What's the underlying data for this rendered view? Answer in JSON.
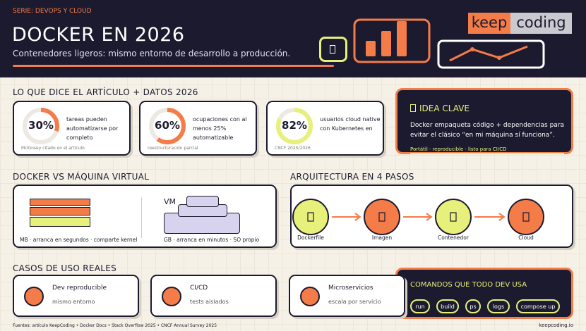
{
  "header": {
    "series": "SERIE: DEVOPS Y CLOUD",
    "title": "DOCKER EN 2026",
    "subtitle": "Contenedores ligeros: mismo entorno de desarrollo a producción.",
    "logo": [
      "keep",
      "coding"
    ]
  },
  "sections": {
    "stats": "LO QUE DICE EL ARTÍCULO + DATOS 2026",
    "compare": "DOCKER VS MÁQUINA VIRTUAL",
    "arch": "ARQUITECTURA EN 4 PASOS",
    "uses": "CASOS DE USO REALES"
  },
  "stats": [
    {
      "value": 30,
      "label": "30%",
      "text": "tareas pueden automatizarse por completo",
      "source": "McKinsey citado en el artículo"
    },
    {
      "value": 60,
      "label": "60%",
      "text": "ocupaciones con al menos 25% automatizable",
      "source": "reestructuración parcial"
    },
    {
      "value": 82,
      "label": "82%",
      "text": "usuarios cloud native con Kubernetes en",
      "source": "CNCF 2025/2026"
    }
  ],
  "idea": {
    "title": "IDEA CLAVE",
    "text": "Docker empaqueta código + dependencias para evitar el clásico “en mi máquina sí funciona”.",
    "footer": "Portátil · reproducible · listo para CI/CD"
  },
  "compare": {
    "container_caption": "MB · arranca en segundos · comparte kernel",
    "vm_label": "VM",
    "vm_caption": "GB · arranca en minutos · SO propio"
  },
  "steps": [
    "Dockerfile",
    "Imagen",
    "Contenedor",
    "Cloud"
  ],
  "uses": [
    {
      "title": "Dev reproducible",
      "text": "mismo entorno"
    },
    {
      "title": "CI/CD",
      "text": "tests aislados"
    },
    {
      "title": "Microservicios",
      "text": "escala por servicio"
    }
  ],
  "commands": {
    "title": "COMANDOS QUE TODO DEV USA",
    "items": [
      "run",
      "build",
      "ps",
      "logs",
      "compose up"
    ]
  },
  "footer": {
    "sources": "Fuentes: artículo KeepCoding • Docker Docs • Stack Overflow 2025 • CNCF Annual Survey 2025",
    "site": "keepcoding.io"
  }
}
